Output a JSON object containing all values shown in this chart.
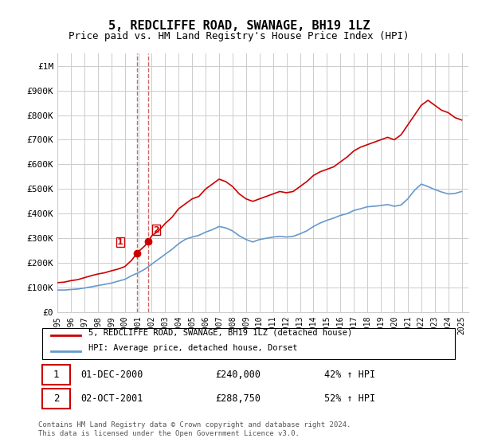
{
  "title": "5, REDCLIFFE ROAD, SWANAGE, BH19 1LZ",
  "subtitle": "Price paid vs. HM Land Registry's House Price Index (HPI)",
  "title_fontsize": 11,
  "subtitle_fontsize": 9,
  "legend_line1": "5, REDCLIFFE ROAD, SWANAGE, BH19 1LZ (detached house)",
  "legend_line2": "HPI: Average price, detached house, Dorset",
  "transaction1_label": "1",
  "transaction1_date": "01-DEC-2000",
  "transaction1_price": "£240,000",
  "transaction1_hpi": "42% ↑ HPI",
  "transaction2_label": "2",
  "transaction2_date": "02-OCT-2001",
  "transaction2_price": "£288,750",
  "transaction2_hpi": "52% ↑ HPI",
  "footer": "Contains HM Land Registry data © Crown copyright and database right 2024.\nThis data is licensed under the Open Government Licence v3.0.",
  "red_color": "#cc0000",
  "blue_color": "#6699cc",
  "marker_color": "#cc0000",
  "vline_color": "#cc6666",
  "background_color": "#ffffff",
  "grid_color": "#cccccc",
  "ylim": [
    0,
    1050000
  ],
  "xlim_start": 1995.0,
  "xlim_end": 2025.5,
  "transaction1_x": 2000.917,
  "transaction1_y": 240000,
  "transaction2_x": 2001.75,
  "transaction2_y": 288750,
  "red_x": [
    1995.0,
    1995.5,
    1996.0,
    1996.5,
    1997.0,
    1997.5,
    1998.0,
    1998.5,
    1999.0,
    1999.5,
    2000.0,
    2000.5,
    2000.917,
    2001.0,
    2001.5,
    2001.75,
    2002.0,
    2002.5,
    2003.0,
    2003.5,
    2004.0,
    2004.5,
    2005.0,
    2005.5,
    2006.0,
    2006.5,
    2007.0,
    2007.5,
    2008.0,
    2008.5,
    2009.0,
    2009.5,
    2010.0,
    2010.5,
    2011.0,
    2011.5,
    2012.0,
    2012.5,
    2013.0,
    2013.5,
    2014.0,
    2014.5,
    2015.0,
    2015.5,
    2016.0,
    2016.5,
    2017.0,
    2017.5,
    2018.0,
    2018.5,
    2019.0,
    2019.5,
    2020.0,
    2020.5,
    2021.0,
    2021.5,
    2022.0,
    2022.5,
    2023.0,
    2023.5,
    2024.0,
    2024.5,
    2025.0
  ],
  "red_y": [
    120000,
    122000,
    128000,
    132000,
    140000,
    148000,
    155000,
    160000,
    168000,
    175000,
    185000,
    210000,
    240000,
    245000,
    270000,
    288750,
    310000,
    330000,
    360000,
    385000,
    420000,
    440000,
    460000,
    470000,
    500000,
    520000,
    540000,
    530000,
    510000,
    480000,
    460000,
    450000,
    460000,
    470000,
    480000,
    490000,
    485000,
    490000,
    510000,
    530000,
    555000,
    570000,
    580000,
    590000,
    610000,
    630000,
    655000,
    670000,
    680000,
    690000,
    700000,
    710000,
    700000,
    720000,
    760000,
    800000,
    840000,
    860000,
    840000,
    820000,
    810000,
    790000,
    780000
  ],
  "blue_x": [
    1995.0,
    1995.5,
    1996.0,
    1996.5,
    1997.0,
    1997.5,
    1998.0,
    1998.5,
    1999.0,
    1999.5,
    2000.0,
    2000.5,
    2001.0,
    2001.5,
    2002.0,
    2002.5,
    2003.0,
    2003.5,
    2004.0,
    2004.5,
    2005.0,
    2005.5,
    2006.0,
    2006.5,
    2007.0,
    2007.5,
    2008.0,
    2008.5,
    2009.0,
    2009.5,
    2010.0,
    2010.5,
    2011.0,
    2011.5,
    2012.0,
    2012.5,
    2013.0,
    2013.5,
    2014.0,
    2014.5,
    2015.0,
    2015.5,
    2016.0,
    2016.5,
    2017.0,
    2017.5,
    2018.0,
    2018.5,
    2019.0,
    2019.5,
    2020.0,
    2020.5,
    2021.0,
    2021.5,
    2022.0,
    2022.5,
    2023.0,
    2023.5,
    2024.0,
    2024.5,
    2025.0
  ],
  "blue_y": [
    90000,
    90000,
    92000,
    94000,
    98000,
    103000,
    108000,
    113000,
    118000,
    126000,
    133000,
    148000,
    160000,
    175000,
    195000,
    215000,
    235000,
    255000,
    278000,
    296000,
    305000,
    312000,
    325000,
    335000,
    348000,
    342000,
    330000,
    310000,
    295000,
    285000,
    295000,
    300000,
    305000,
    308000,
    305000,
    308000,
    318000,
    330000,
    348000,
    362000,
    373000,
    382000,
    393000,
    400000,
    413000,
    420000,
    428000,
    430000,
    433000,
    437000,
    430000,
    435000,
    460000,
    495000,
    520000,
    510000,
    498000,
    488000,
    480000,
    482000,
    490000
  ],
  "yticks": [
    0,
    100000,
    200000,
    300000,
    400000,
    500000,
    600000,
    700000,
    800000,
    900000,
    1000000
  ],
  "ytick_labels": [
    "£0",
    "£100K",
    "£200K",
    "£300K",
    "£400K",
    "£500K",
    "£600K",
    "£700K",
    "£800K",
    "£900K",
    "£1M"
  ],
  "xticks": [
    1995,
    1996,
    1997,
    1998,
    1999,
    2000,
    2001,
    2002,
    2003,
    2004,
    2005,
    2006,
    2007,
    2008,
    2009,
    2010,
    2011,
    2012,
    2013,
    2014,
    2015,
    2016,
    2017,
    2018,
    2019,
    2020,
    2021,
    2022,
    2023,
    2024,
    2025
  ]
}
